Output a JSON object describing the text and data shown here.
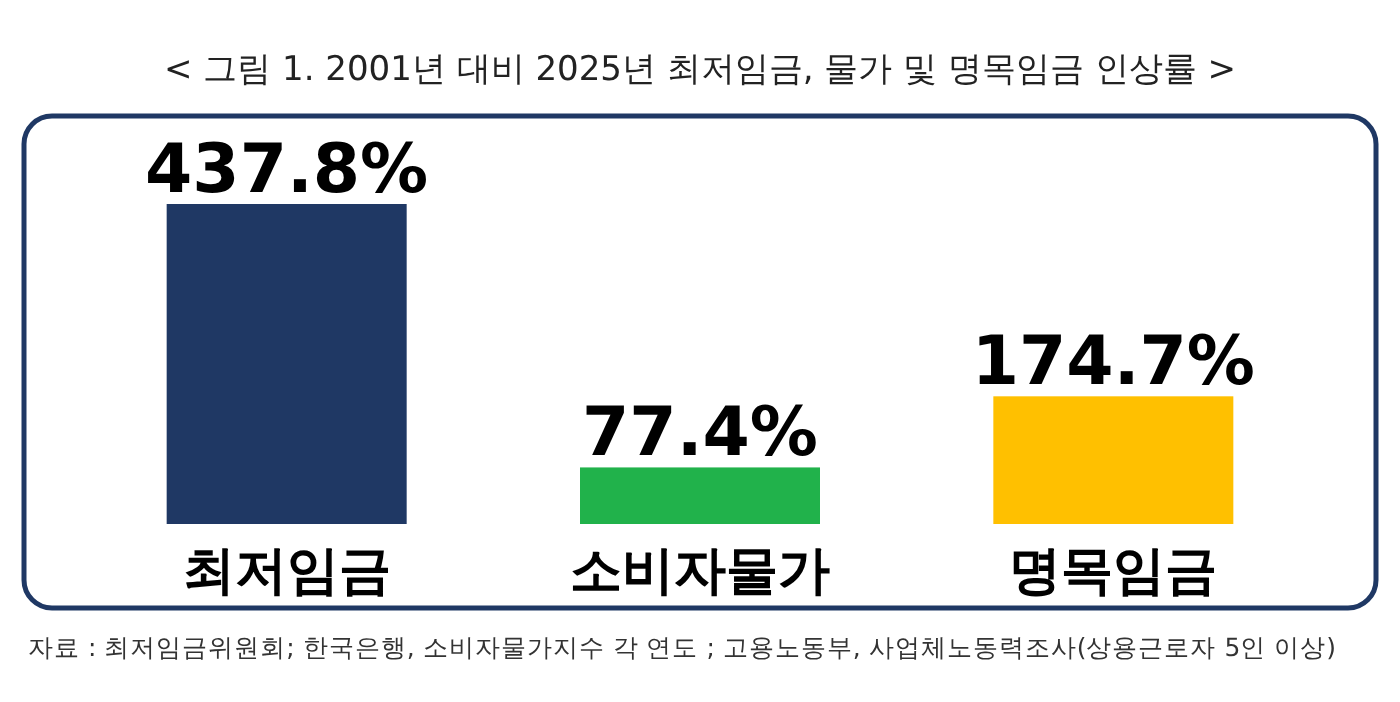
{
  "chart_data": {
    "type": "bar",
    "title": "< 그림 1. 2001년 대비 2025년 최저임금, 물가 및 명목임금 인상률 >",
    "categories": [
      "최저임금",
      "소비자물가",
      "명목임금"
    ],
    "values": [
      437.8,
      77.4,
      174.7
    ],
    "colors": [
      "#1f3864",
      "#21b24b",
      "#ffc000"
    ],
    "value_labels": [
      "437.8%",
      "77.4%",
      "174.7%"
    ],
    "annotations": [
      "자료 : 최저임금위원회; 한국은행, 소비자물가지수 각 연도 ; 고용노동부, 사업체노동력조사(상용근로자 5인 이상)"
    ]
  }
}
